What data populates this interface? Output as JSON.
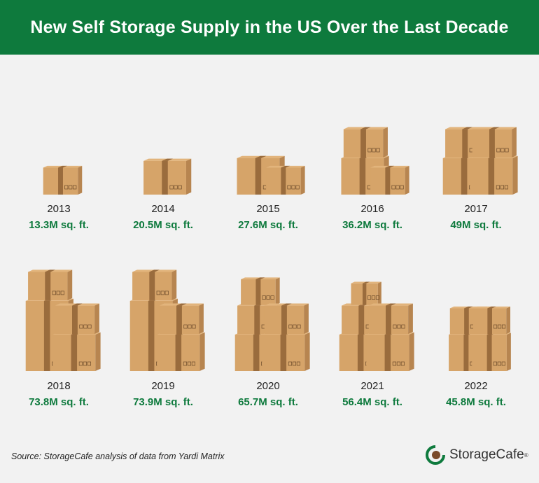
{
  "header": {
    "title": "New Self Storage Supply in the US Over the Last Decade"
  },
  "footer": {
    "source": "Source: StorageCafe analysis of data from Yardi Matrix",
    "brand": "StorageCafe",
    "brand_mark": "®"
  },
  "colors": {
    "header_bg": "#0e7a3d",
    "value_text": "#0e7a3d",
    "box_front": "#d6a469",
    "box_side": "#b78550",
    "box_top": "#e2b47c",
    "box_tape": "#9a6c3d"
  },
  "chart_data": {
    "type": "pictograph",
    "title": "New Self Storage Supply in the US Over the Last Decade",
    "unit": "M sq. ft.",
    "categories": [
      "2013",
      "2014",
      "2015",
      "2016",
      "2017",
      "2018",
      "2019",
      "2020",
      "2021",
      "2022"
    ],
    "values": [
      13.3,
      20.5,
      27.6,
      36.2,
      49,
      73.8,
      73.9,
      65.7,
      56.4,
      45.8
    ],
    "value_labels": [
      "13.3M sq. ft.",
      "20.5M sq. ft.",
      "27.6M sq. ft.",
      "36.2M sq. ft.",
      "49M sq. ft.",
      "73.8M sq. ft.",
      "73.9M sq. ft.",
      "65.7M sq. ft.",
      "56.4M sq. ft.",
      "45.8M sq. ft."
    ]
  }
}
